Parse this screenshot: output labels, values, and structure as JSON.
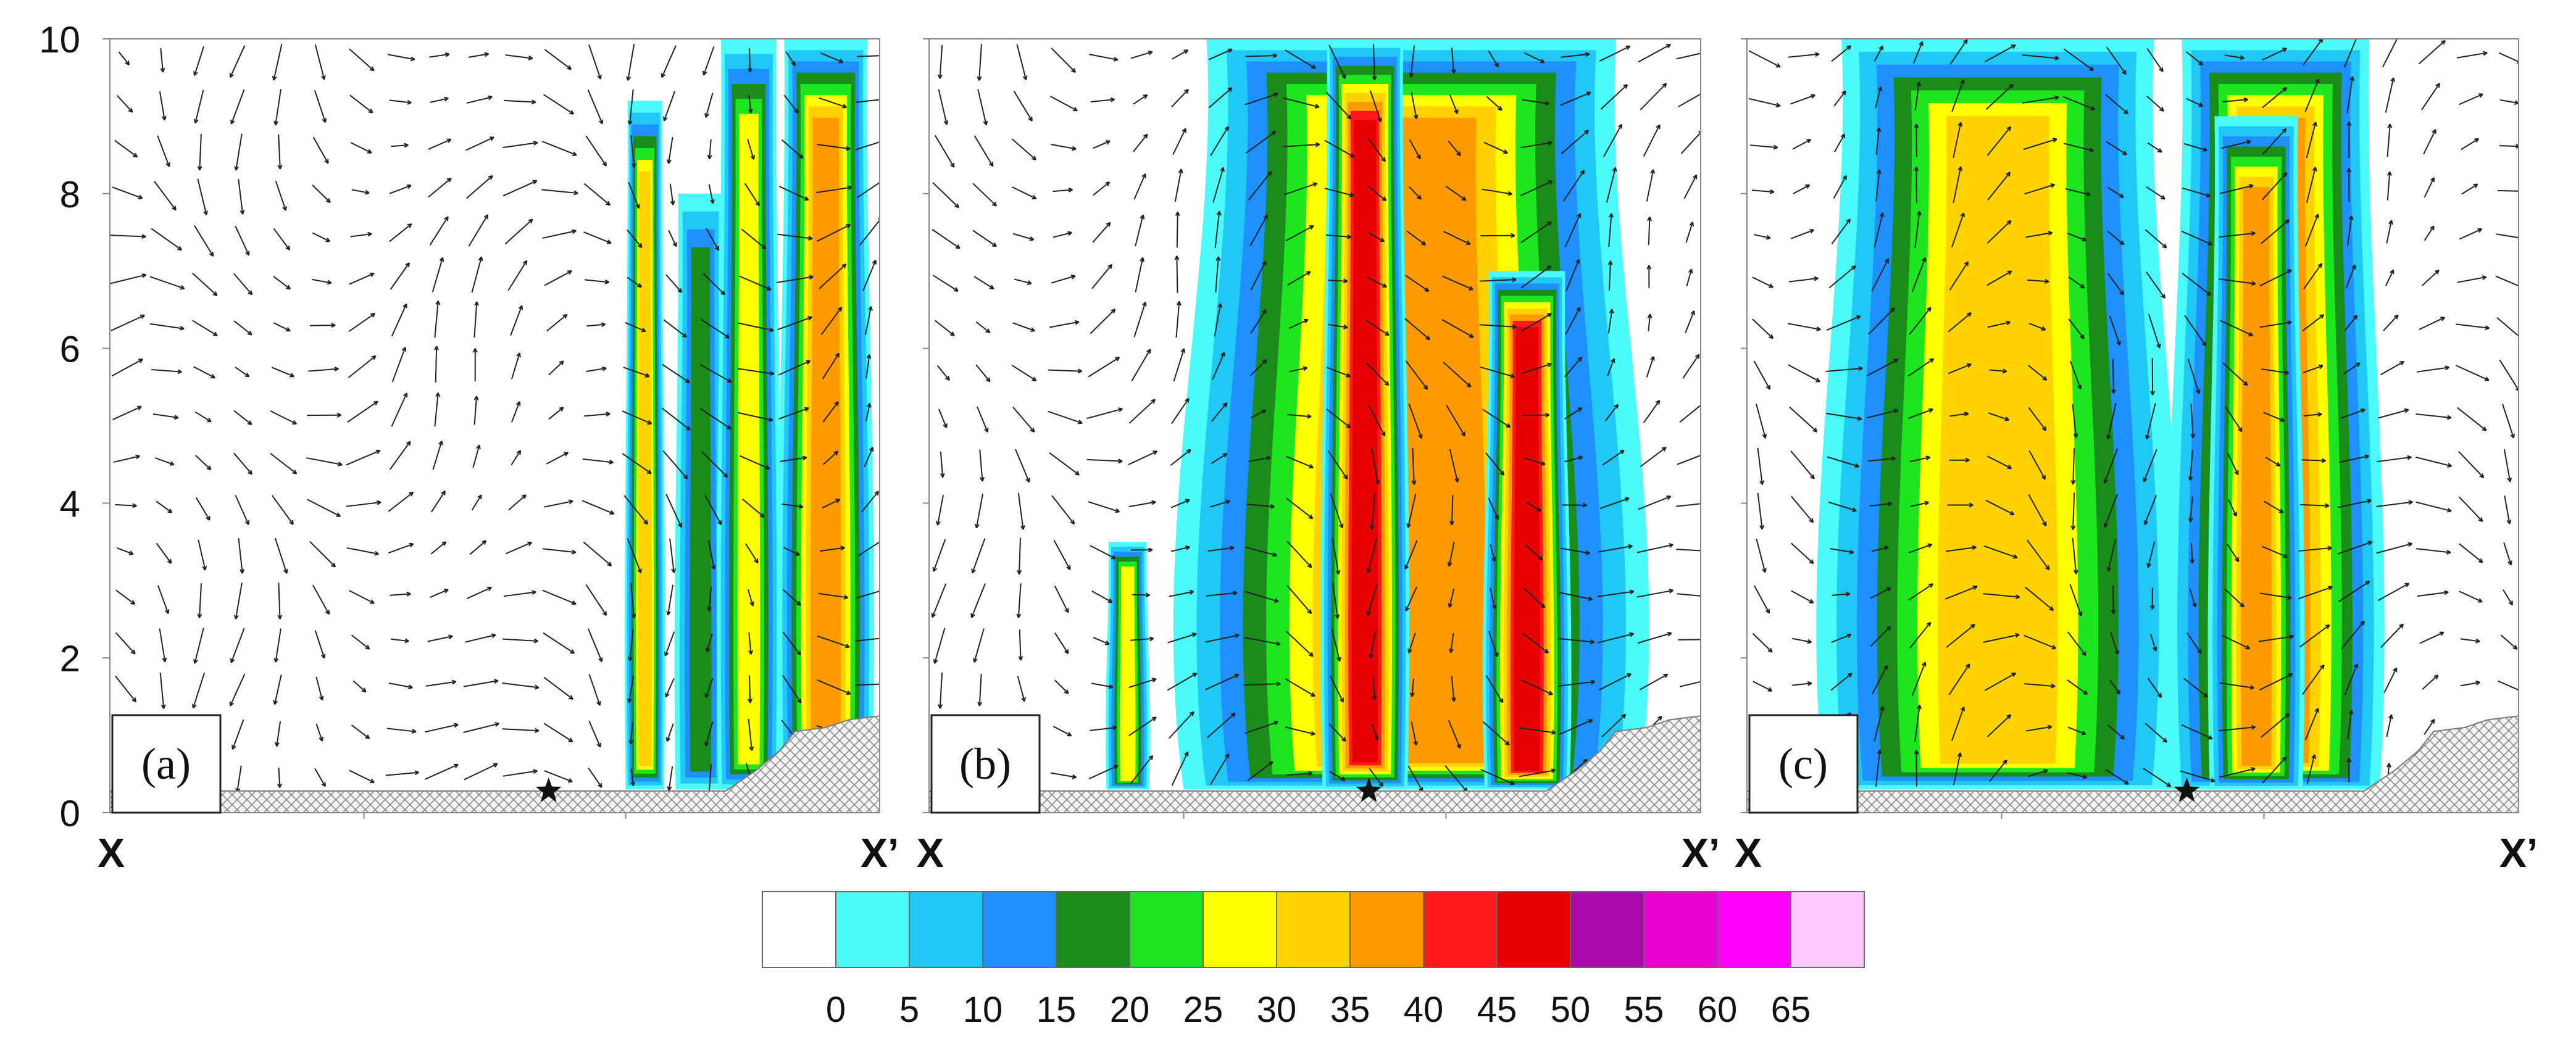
{
  "chart_data": {
    "type": "heatmap",
    "panels": [
      {
        "label": "(a)",
        "x_start_label": "X",
        "x_end_label": "X’",
        "y_ticks": [
          "0",
          "2",
          "4",
          "6",
          "8",
          "10"
        ],
        "ylim": [
          0,
          10
        ],
        "xlim": [
          0,
          1
        ],
        "star_x": 0.57,
        "columns": [
          {
            "x": [
              0.67,
              0.72
            ],
            "y": [
              0.3,
              9.2
            ],
            "peak": 32
          },
          {
            "x": [
              0.735,
              0.8
            ],
            "y": [
              0.3,
              8.0
            ],
            "peak": 18
          },
          {
            "x": [
              0.79,
              0.87
            ],
            "y": [
              0.3,
              10
            ],
            "peak": 28
          },
          {
            "x": [
              0.87,
              0.99
            ],
            "y": [
              0.3,
              10
            ],
            "peak": 38
          }
        ]
      },
      {
        "label": "(b)",
        "x_start_label": "X",
        "x_end_label": "X’",
        "y_ticks": [],
        "ylim": [
          0,
          10
        ],
        "xlim": [
          0,
          1
        ],
        "star_x": 0.57,
        "columns": [
          {
            "x": [
              0.23,
              0.285
            ],
            "y": [
              0.3,
              3.5
            ],
            "peak": 28
          },
          {
            "x": [
              0.33,
              0.92
            ],
            "y": [
              0.3,
              10
            ],
            "peak": 37
          },
          {
            "x": [
              0.51,
              0.62
            ],
            "y": [
              0.3,
              10
            ],
            "peak": 45
          },
          {
            "x": [
              0.72,
              0.83
            ],
            "y": [
              0.3,
              7.0
            ],
            "peak": 45
          }
        ]
      },
      {
        "label": "(c)",
        "x_start_label": "X",
        "x_end_label": "X’",
        "y_ticks": [],
        "ylim": [
          0,
          10
        ],
        "xlim": [
          0,
          1
        ],
        "star_x": 0.57,
        "columns": [
          {
            "x": [
              0.1,
              0.55
            ],
            "y": [
              0.3,
              10
            ],
            "peak": 32
          },
          {
            "x": [
              0.55,
              0.82
            ],
            "y": [
              0.3,
              10
            ],
            "peak": 35
          },
          {
            "x": [
              0.6,
              0.72
            ],
            "y": [
              0.3,
              9.0
            ],
            "peak": 38
          }
        ]
      }
    ],
    "colorbar": {
      "ticks": [
        "0",
        "5",
        "10",
        "15",
        "20",
        "25",
        "30",
        "35",
        "40",
        "45",
        "50",
        "55",
        "60",
        "65"
      ],
      "colors": [
        "#ffffff",
        "#4cfafa",
        "#22c8f5",
        "#1e90ff",
        "#1a8c1a",
        "#1ee61e",
        "#ffff00",
        "#ffd200",
        "#ff9b00",
        "#ff1a1a",
        "#e60000",
        "#aa0aaa",
        "#e600d2",
        "#ff00ff",
        "#ffc8ff"
      ]
    }
  }
}
